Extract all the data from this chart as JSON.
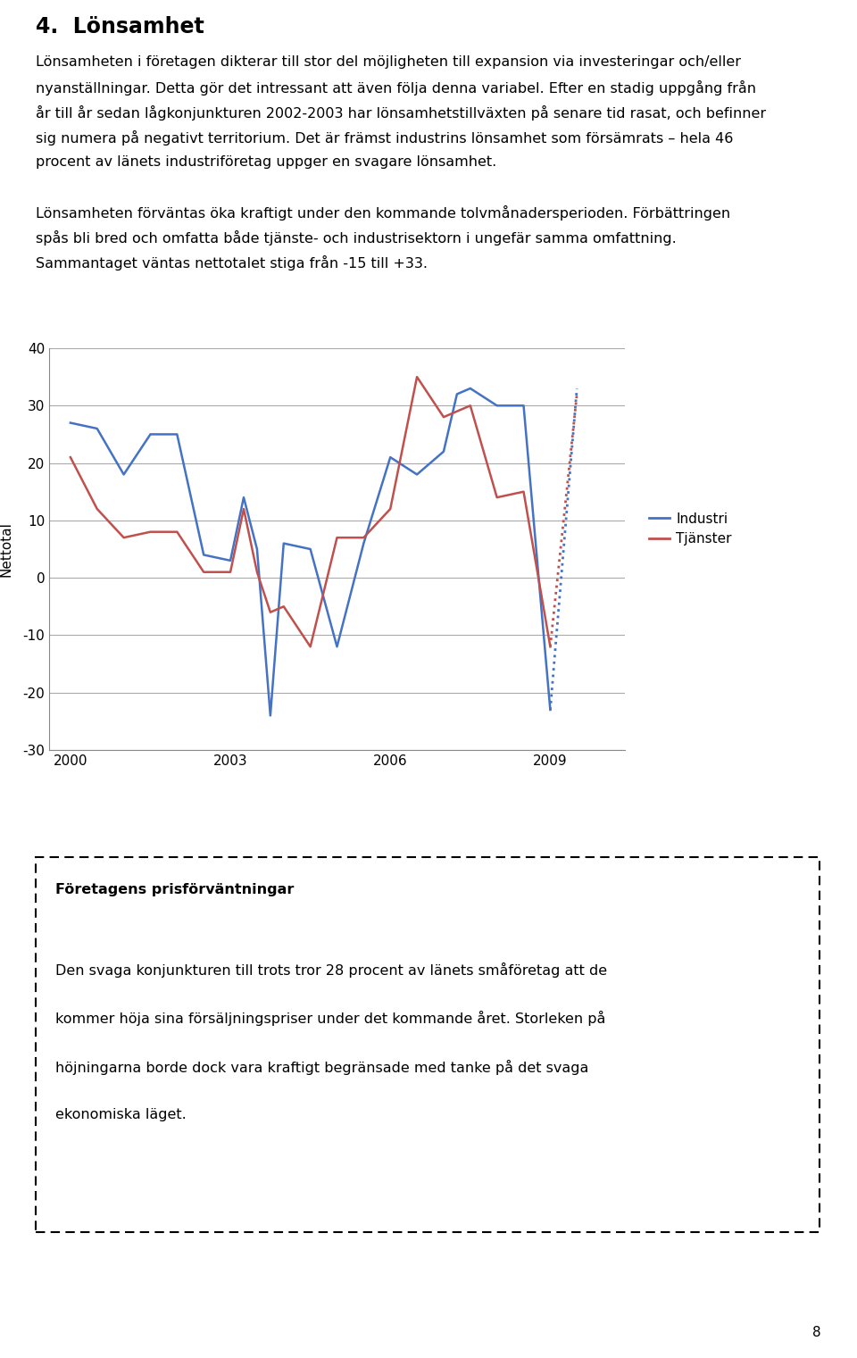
{
  "title_section": "4.  Lönsamhet",
  "body_text_line1": "Lönsamheten i företagen dikterar till stor del möjligheten till expansion via investeringar och/eller",
  "body_text_line2": "nyanställningar. Detta gör det intressant att även följa denna variabel. Efter en stadig uppgång från",
  "body_text_line3": "år till år sedan lågkonjunkturen 2002-2003 har lönsamhetstillväxten på senare tid rasat, och befinner",
  "body_text_line4": "sig numera på negativt territorium. Det är främst industrins lönsamhet som försämrats – hela 46",
  "body_text_line5": "procent av länets industriföretag uppger en svagare lönsamhet.",
  "body2_line1": "Lönsamheten förväntas öka kraftigt under den kommande tolvmånadersperioden. Förbättringen",
  "body2_line2": "spås bli bred och omfatta både tjänste- och industrisektorn i ungefär samma omfattning.",
  "body2_line3": "Sammantaget väntas nettotalet stiga från -15 till +33.",
  "ylabel": "Nettotal",
  "ylim": [
    -30,
    40
  ],
  "yticks": [
    -30,
    -20,
    -10,
    0,
    10,
    20,
    30,
    40
  ],
  "xtick_years": [
    2000,
    2003,
    2006,
    2009
  ],
  "industri_color": "#4472C4",
  "tjanster_color": "#C0504D",
  "industri_x": [
    2000.0,
    2000.5,
    2001.0,
    2001.5,
    2002.0,
    2002.5,
    2003.0,
    2003.25,
    2003.5,
    2003.75,
    2004.0,
    2004.5,
    2005.0,
    2005.5,
    2006.0,
    2006.5,
    2007.0,
    2007.25,
    2007.5,
    2008.0,
    2008.5,
    2009.0,
    2009.5
  ],
  "industri_y": [
    27,
    26,
    18,
    25,
    25,
    4,
    3,
    14,
    5,
    -24,
    6,
    5,
    -12,
    6,
    21,
    18,
    22,
    32,
    33,
    30,
    30,
    -23,
    33
  ],
  "tjanster_x": [
    2000.0,
    2000.5,
    2001.0,
    2001.5,
    2002.0,
    2002.5,
    2003.0,
    2003.25,
    2003.5,
    2003.75,
    2004.0,
    2004.5,
    2005.0,
    2005.5,
    2006.0,
    2006.5,
    2007.0,
    2007.25,
    2007.5,
    2008.0,
    2008.5,
    2009.0,
    2009.5
  ],
  "tjanster_y": [
    21,
    12,
    7,
    8,
    8,
    1,
    1,
    12,
    1,
    -6,
    -5,
    -12,
    7,
    7,
    12,
    35,
    28,
    29,
    30,
    14,
    15,
    -12,
    32
  ],
  "forecast_x_start": 2009.0,
  "box_title": "Företagens prisförväntningar",
  "box_text_line1": "Den svaga konjunkturen till trots tror 28 procent av länets småföretag att de",
  "box_text_line2": "kommer höja sina försäljningspriser under det kommande året. Storleken på",
  "box_text_line3": "höjningarna borde dock vara kraftigt begränsade med tanke på det svaga",
  "box_text_line4": "ekonomiska läget.",
  "page_number": "8",
  "bg_color": "#ffffff"
}
